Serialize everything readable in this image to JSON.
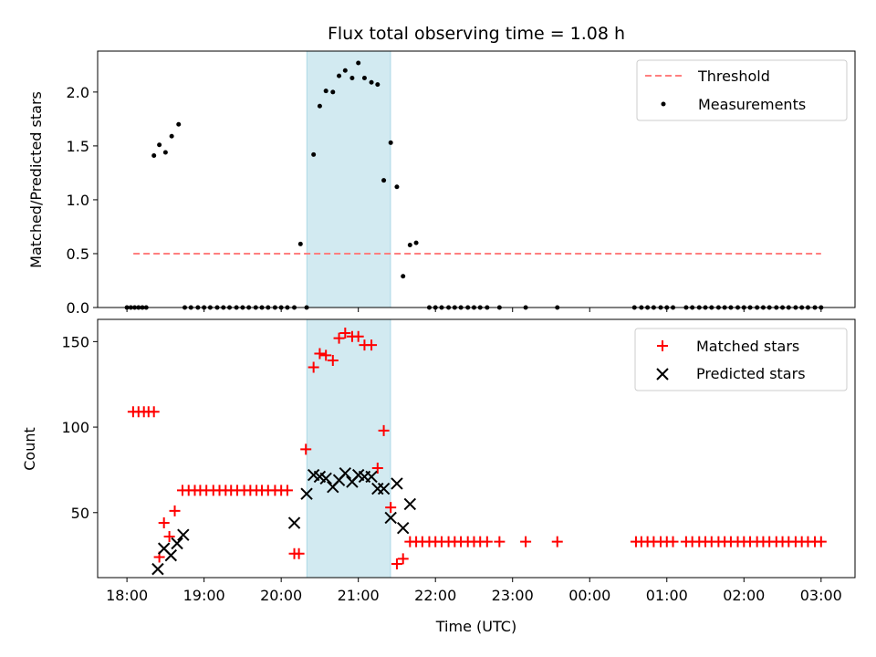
{
  "chart_data": [
    {
      "type": "scatter",
      "panel": "top",
      "title": "Flux total observing time = 1.08 h",
      "xlabel": "",
      "ylabel": "Matched/Predicted stars",
      "xlim": [
        -0.38,
        9.44
      ],
      "ylim": [
        0.0,
        2.38
      ],
      "yticks": [
        0.0,
        0.5,
        1.0,
        1.5,
        2.0
      ],
      "ytick_labels": [
        "0.0",
        "0.5",
        "1.0",
        "1.5",
        "2.0"
      ],
      "highlight_span": [
        2.333,
        3.417
      ],
      "highlight_color": "#add8e6",
      "threshold": {
        "name": "Threshold",
        "value": 0.5,
        "x_range": [
          0.083,
          9.0
        ],
        "color": "#ff7f7f"
      },
      "legend": [
        "Threshold",
        "Measurements"
      ],
      "legend_position": "top-right",
      "series": [
        {
          "name": "Measurements",
          "marker": "dot",
          "color": "#000000",
          "x": [
            0.0,
            0.05,
            0.1,
            0.15,
            0.2,
            0.25,
            0.35,
            0.42,
            0.5,
            0.58,
            0.67,
            0.75,
            0.83,
            0.92,
            1.0,
            1.08,
            1.17,
            1.25,
            1.33,
            1.42,
            1.5,
            1.58,
            1.67,
            1.75,
            1.83,
            1.92,
            2.0,
            2.08,
            2.17,
            2.25,
            2.33,
            2.42,
            2.5,
            2.58,
            2.67,
            2.75,
            2.83,
            2.92,
            3.0,
            3.08,
            3.17,
            3.25,
            3.33,
            3.42,
            3.5,
            3.58,
            3.67,
            3.75,
            3.92,
            4.0,
            4.08,
            4.17,
            4.25,
            4.33,
            4.42,
            4.5,
            4.58,
            4.67,
            4.83,
            5.17,
            5.58,
            6.58,
            6.67,
            6.75,
            6.83,
            6.92,
            7.0,
            7.08,
            7.25,
            7.33,
            7.42,
            7.5,
            7.58,
            7.67,
            7.75,
            7.83,
            7.92,
            8.0,
            8.08,
            8.17,
            8.25,
            8.33,
            8.42,
            8.5,
            8.58,
            8.67,
            8.75,
            8.83,
            8.92,
            9.0
          ],
          "y": [
            0.0,
            0.0,
            0.0,
            0.0,
            0.0,
            0.0,
            1.41,
            1.51,
            1.44,
            1.59,
            1.7,
            0.0,
            0.0,
            0.0,
            0.0,
            0.0,
            0.0,
            0.0,
            0.0,
            0.0,
            0.0,
            0.0,
            0.0,
            0.0,
            0.0,
            0.0,
            0.0,
            0.0,
            0.0,
            0.59,
            0.0,
            1.42,
            1.87,
            2.01,
            2.0,
            2.15,
            2.2,
            2.13,
            2.27,
            2.13,
            2.09,
            2.07,
            1.18,
            1.53,
            1.12,
            0.29,
            0.58,
            0.6,
            0.0,
            0.0,
            0.0,
            0.0,
            0.0,
            0.0,
            0.0,
            0.0,
            0.0,
            0.0,
            0.0,
            0.0,
            0.0,
            0.0,
            0.0,
            0.0,
            0.0,
            0.0,
            0.0,
            0.0,
            0.0,
            0.0,
            0.0,
            0.0,
            0.0,
            0.0,
            0.0,
            0.0,
            0.0,
            0.0,
            0.0,
            0.0,
            0.0,
            0.0,
            0.0,
            0.0,
            0.0,
            0.0,
            0.0,
            0.0,
            0.0,
            0.0
          ]
        }
      ]
    },
    {
      "type": "scatter",
      "panel": "bottom",
      "title": "",
      "xlabel": "Time (UTC)",
      "ylabel": "Count",
      "xlim": [
        -0.38,
        9.44
      ],
      "ylim": [
        12,
        163
      ],
      "yticks": [
        50,
        100,
        150
      ],
      "ytick_labels": [
        "50",
        "100",
        "150"
      ],
      "xticks": [
        0,
        1,
        2,
        3,
        4,
        5,
        6,
        7,
        8,
        9
      ],
      "xtick_labels": [
        "18:00",
        "19:00",
        "20:00",
        "21:00",
        "22:00",
        "23:00",
        "00:00",
        "01:00",
        "02:00",
        "03:00"
      ],
      "highlight_span": [
        2.333,
        3.417
      ],
      "highlight_color": "#add8e6",
      "legend": [
        "Matched stars",
        "Predicted stars"
      ],
      "legend_position": "top-right",
      "series": [
        {
          "name": "Matched stars",
          "marker": "plus",
          "color": "#ff0000",
          "x": [
            0.08,
            0.15,
            0.22,
            0.28,
            0.35,
            0.42,
            0.48,
            0.55,
            0.62,
            0.72,
            0.8,
            0.88,
            0.95,
            1.03,
            1.12,
            1.2,
            1.28,
            1.35,
            1.43,
            1.52,
            1.6,
            1.68,
            1.75,
            1.83,
            1.92,
            2.0,
            2.08,
            2.17,
            2.23,
            2.32,
            2.42,
            2.5,
            2.58,
            2.67,
            2.75,
            2.83,
            2.92,
            3.0,
            3.08,
            3.17,
            3.25,
            3.33,
            3.42,
            3.5,
            3.58,
            3.67,
            3.75,
            3.83,
            3.92,
            4.0,
            4.08,
            4.17,
            4.25,
            4.33,
            4.42,
            4.5,
            4.58,
            4.67,
            4.83,
            5.17,
            5.58,
            6.6,
            6.67,
            6.75,
            6.83,
            6.92,
            7.0,
            7.08,
            7.25,
            7.33,
            7.42,
            7.5,
            7.58,
            7.67,
            7.75,
            7.83,
            7.92,
            8.0,
            8.08,
            8.17,
            8.25,
            8.33,
            8.42,
            8.5,
            8.58,
            8.67,
            8.75,
            8.83,
            8.92,
            9.0
          ],
          "y": [
            109,
            109,
            109,
            109,
            109,
            24,
            44,
            36,
            51,
            63,
            63,
            63,
            63,
            63,
            63,
            63,
            63,
            63,
            63,
            63,
            63,
            63,
            63,
            63,
            63,
            63,
            63,
            26,
            26,
            87,
            135,
            143,
            142,
            139,
            152,
            155,
            153,
            153,
            148,
            148,
            76,
            98,
            53,
            20,
            23,
            33,
            33,
            33,
            33,
            33,
            33,
            33,
            33,
            33,
            33,
            33,
            33,
            33,
            33,
            33,
            33,
            33,
            33,
            33,
            33,
            33,
            33,
            33,
            33,
            33,
            33,
            33,
            33,
            33,
            33,
            33,
            33,
            33,
            33,
            33,
            33,
            33,
            33,
            33,
            33,
            33,
            33,
            33,
            33,
            33
          ]
        },
        {
          "name": "Predicted stars",
          "marker": "x",
          "color": "#000000",
          "x": [
            0.4,
            0.48,
            0.57,
            0.65,
            0.73,
            2.17,
            2.33,
            2.42,
            2.5,
            2.58,
            2.67,
            2.75,
            2.83,
            2.92,
            3.0,
            3.08,
            3.17,
            3.25,
            3.33,
            3.42,
            3.5,
            3.58,
            3.67
          ],
          "y": [
            17,
            29,
            25,
            32,
            37,
            44,
            61,
            72,
            71,
            70,
            65,
            69,
            73,
            68,
            72,
            71,
            71,
            64,
            64,
            47,
            67,
            41,
            55
          ]
        }
      ]
    }
  ]
}
